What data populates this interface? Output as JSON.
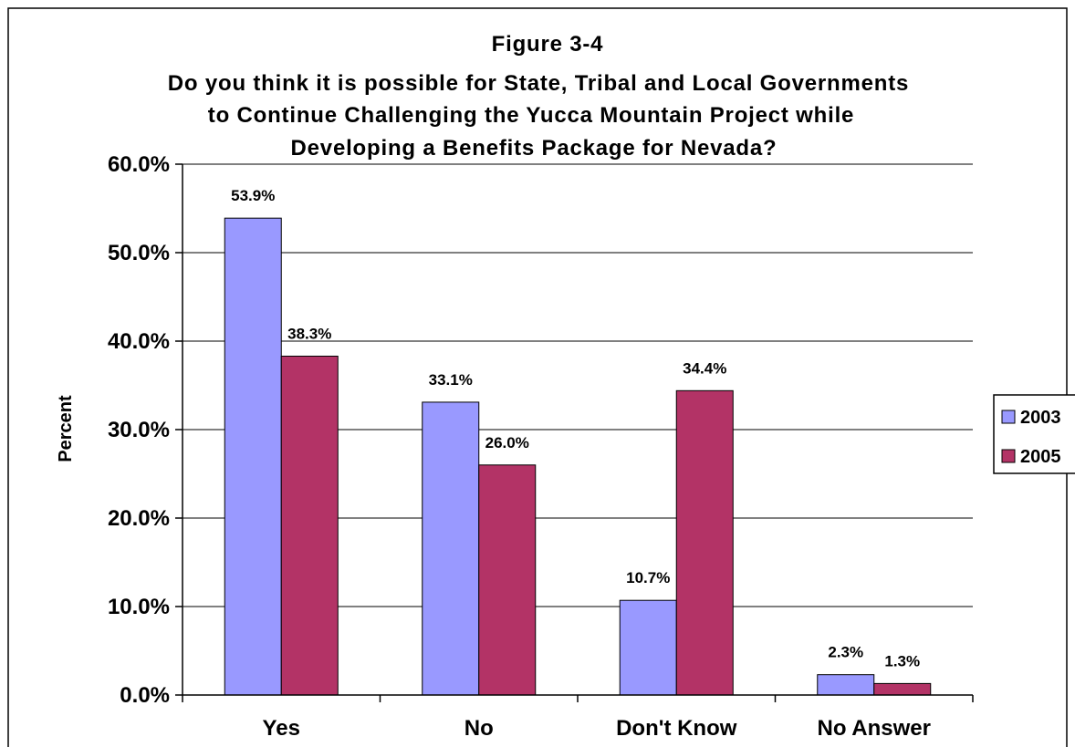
{
  "chart_data": {
    "type": "bar",
    "title_lines": [
      "Figure 3-4",
      "Do you think it is possible for State, Tribal and Local Governments",
      "to Continue Challenging the Yucca Mountain Project while",
      "Developing a Benefits Package for Nevada?"
    ],
    "ylabel": "Percent",
    "xlabel": "",
    "categories": [
      "Yes",
      "No",
      "Don't Know",
      "No Answer"
    ],
    "series": [
      {
        "name": "2003",
        "values": [
          53.9,
          33.1,
          10.7,
          2.3
        ],
        "labels": [
          "53.9%",
          "33.1%",
          "10.7%",
          "2.3%"
        ],
        "color": "#9999ff"
      },
      {
        "name": "2005",
        "values": [
          38.3,
          26.0,
          34.4,
          1.3
        ],
        "labels": [
          "38.3%",
          "26.0%",
          "34.4%",
          "1.3%"
        ],
        "color": "#b33366"
      }
    ],
    "ylim": [
      0,
      60
    ],
    "ytick_values": [
      0,
      10,
      20,
      30,
      40,
      50,
      60
    ],
    "ytick_labels": [
      "0.0%",
      "10.0%",
      "20.0%",
      "30.0%",
      "40.0%",
      "50.0%",
      "60.0%"
    ],
    "grid": true,
    "legend_position": "right"
  }
}
